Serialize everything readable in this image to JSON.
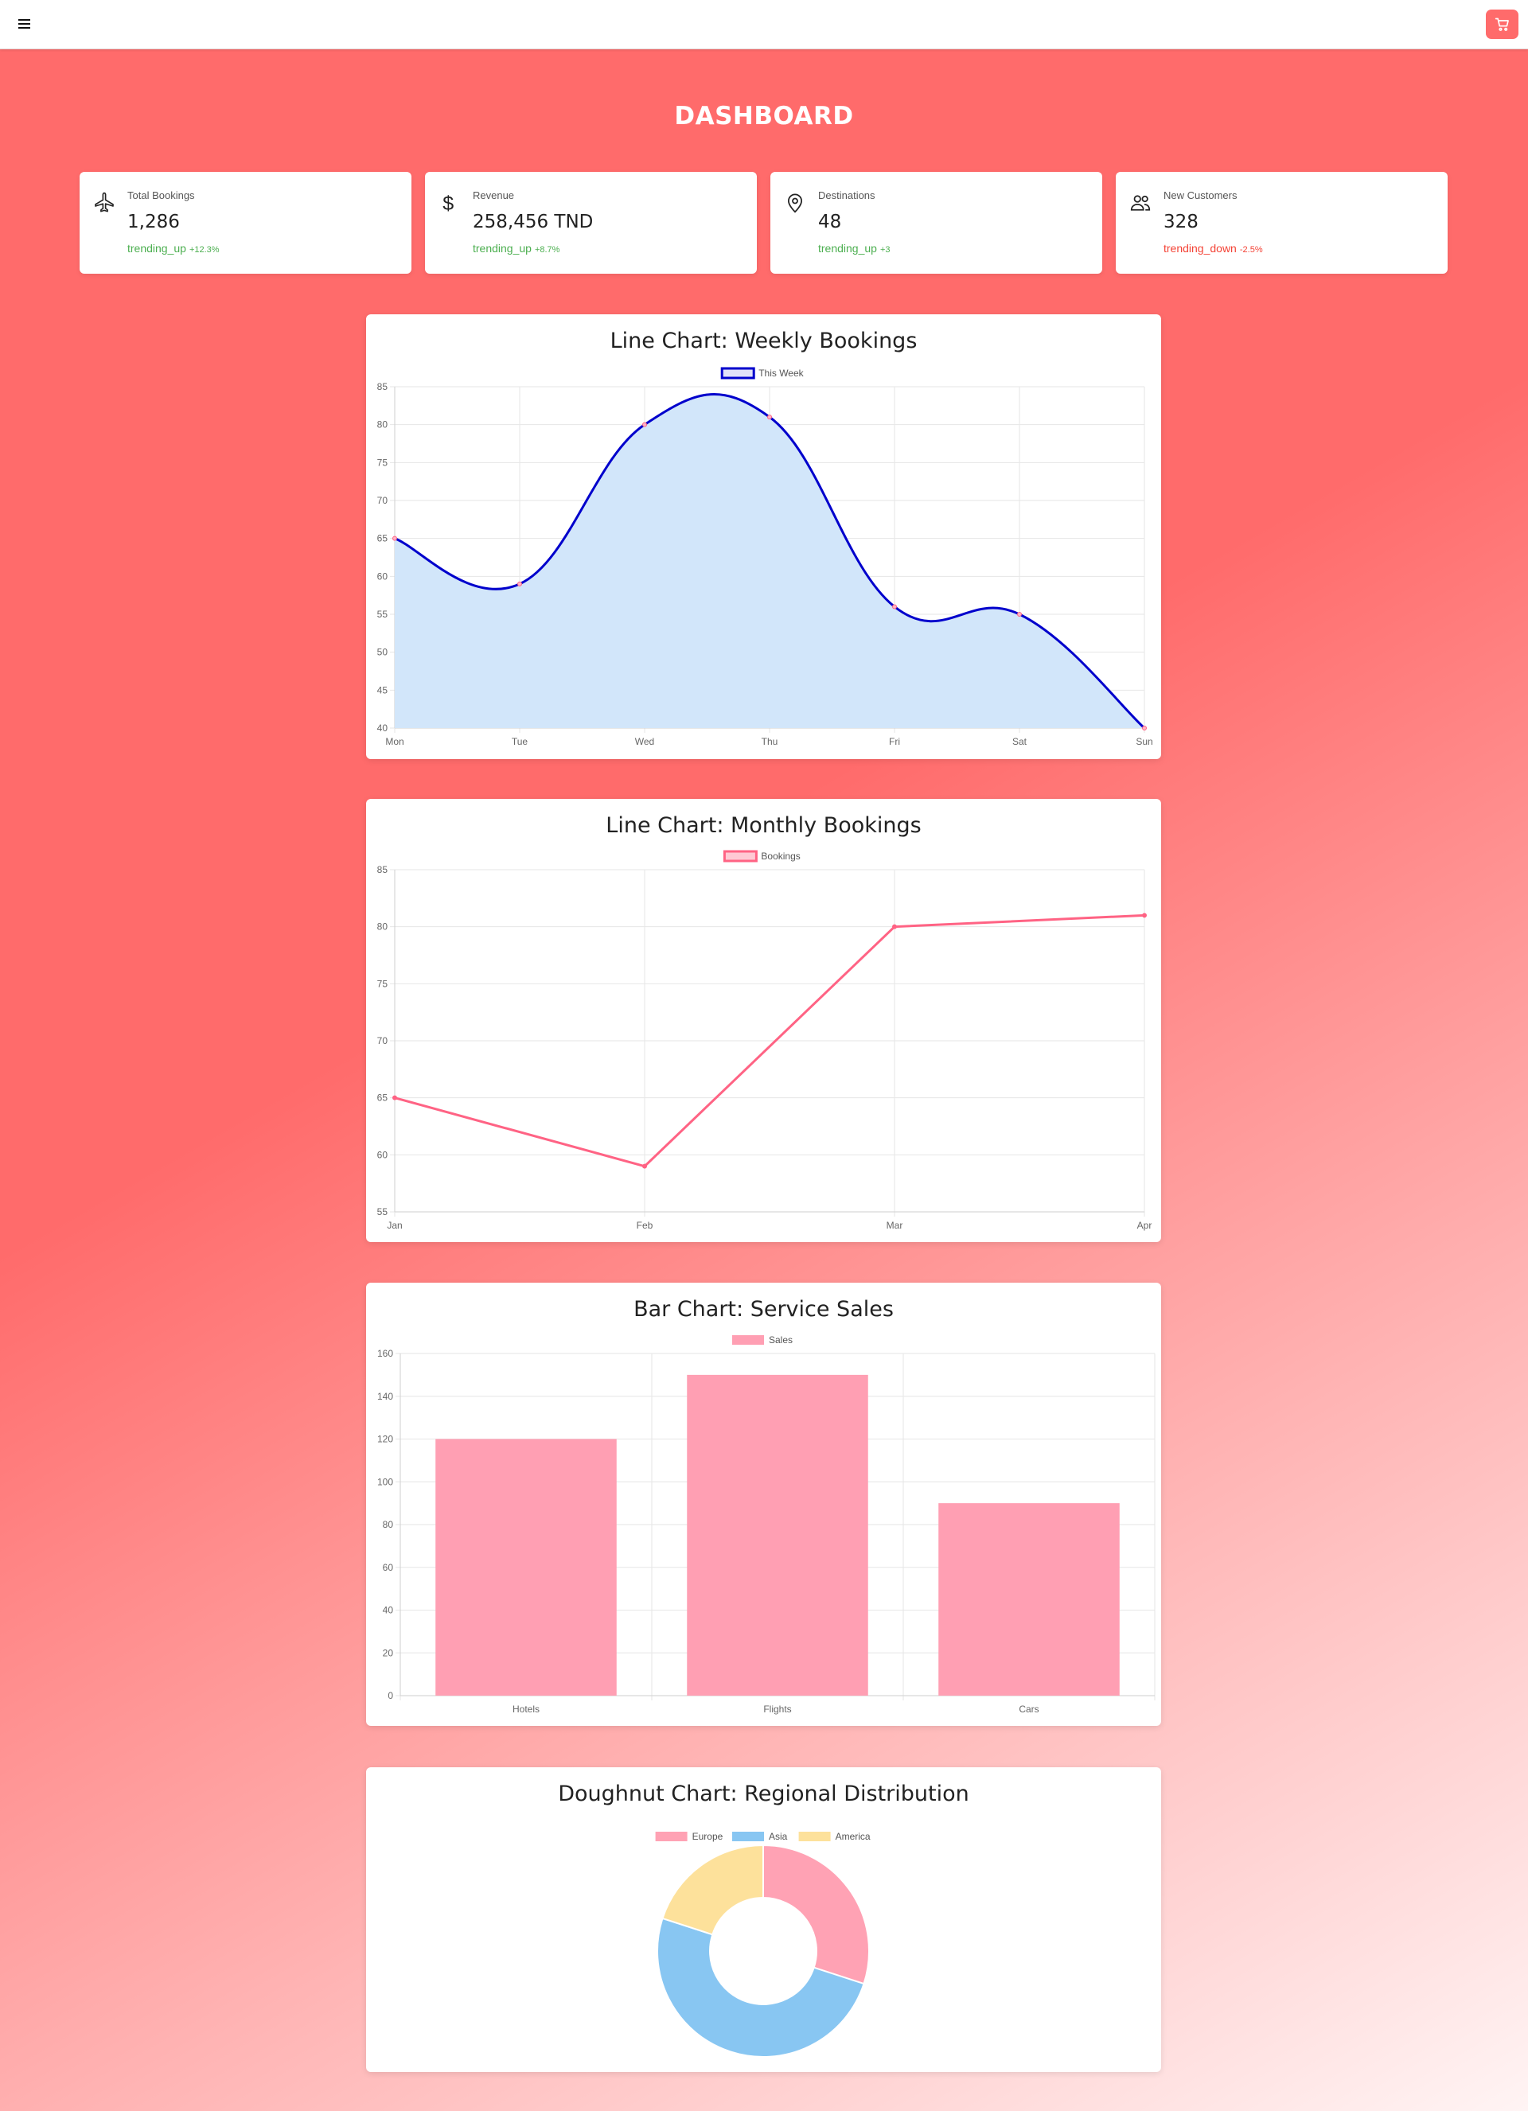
{
  "colors": {
    "accent": "#ff6b6b",
    "trend_up": "#4caf50",
    "trend_down": "#f44336",
    "weekly_line": "#0000cc",
    "weekly_fill": "#d2e6fa",
    "monthly_line": "#ff6384",
    "bar_fill": "#ff9fb3",
    "pie_europe": "#ffa2b4",
    "pie_asia": "#88c6f2",
    "pie_america": "#fde19b"
  },
  "header": {
    "menu_icon": "hamburger-menu-icon",
    "cart_icon": "shopping-cart-icon"
  },
  "page": {
    "title": "DASHBOARD"
  },
  "stats": [
    {
      "icon": "airplane-icon",
      "label": "Total Bookings",
      "value": "1,286",
      "trend_text": "trending_up",
      "trend_pct": "+12.3%",
      "direction": "up"
    },
    {
      "icon": "dollar-icon",
      "label": "Revenue",
      "value": "258,456 TND",
      "trend_text": "trending_up",
      "trend_pct": "+8.7%",
      "direction": "up"
    },
    {
      "icon": "location-pin-icon",
      "label": "Destinations",
      "value": "48",
      "trend_text": "trending_up",
      "trend_pct": "+3",
      "direction": "up"
    },
    {
      "icon": "people-icon",
      "label": "New Customers",
      "value": "328",
      "trend_text": "trending_down",
      "trend_pct": "-2.5%",
      "direction": "down"
    }
  ],
  "chart_data": [
    {
      "type": "line",
      "title": "Line Chart: Weekly Bookings",
      "categories": [
        "Mon",
        "Tue",
        "Wed",
        "Thu",
        "Fri",
        "Sat",
        "Sun"
      ],
      "series": [
        {
          "name": "This Week",
          "values": [
            65,
            59,
            80,
            81,
            56,
            55,
            40
          ]
        }
      ],
      "ylim": [
        40,
        85
      ],
      "yticks": [
        40,
        45,
        50,
        55,
        60,
        65,
        70,
        75,
        80,
        85
      ],
      "fill": true,
      "smooth": true,
      "grid": true,
      "legend": "top-center"
    },
    {
      "type": "line",
      "title": "Line Chart: Monthly Bookings",
      "categories": [
        "Jan",
        "Feb",
        "Mar",
        "Apr"
      ],
      "series": [
        {
          "name": "Bookings",
          "values": [
            65,
            59,
            80,
            81
          ]
        }
      ],
      "ylim": [
        55,
        85
      ],
      "yticks": [
        55,
        60,
        65,
        70,
        75,
        80,
        85
      ],
      "fill": false,
      "smooth": false,
      "grid": true,
      "legend": "top-center"
    },
    {
      "type": "bar",
      "title": "Bar Chart: Service Sales",
      "categories": [
        "Hotels",
        "Flights",
        "Cars"
      ],
      "series": [
        {
          "name": "Sales",
          "values": [
            120,
            150,
            90
          ]
        }
      ],
      "ylim": [
        0,
        160
      ],
      "yticks": [
        0,
        20,
        40,
        60,
        80,
        100,
        120,
        140,
        160
      ],
      "grid": true,
      "legend": "top-center"
    },
    {
      "type": "pie",
      "title": "Doughnut Chart: Regional Distribution",
      "categories": [
        "Europe",
        "Asia",
        "America"
      ],
      "values": [
        30,
        50,
        20
      ],
      "doughnut": true,
      "legend": "top-center"
    }
  ]
}
